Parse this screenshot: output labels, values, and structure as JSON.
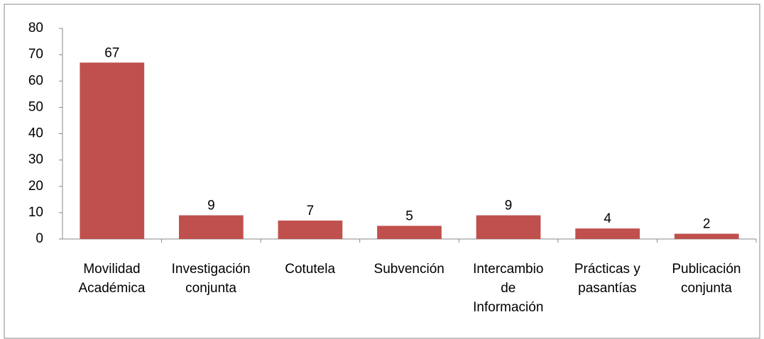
{
  "chart_data": {
    "type": "bar",
    "categories": [
      "Movilidad\nAcadémica",
      "Investigación\nconjunta",
      "Cotutela",
      "Subvención",
      "Intercambio\nde\nInformación",
      "Prácticas y\npasantías",
      "Publicación\nconjunta"
    ],
    "values": [
      67,
      9,
      7,
      5,
      9,
      4,
      2
    ],
    "color": "#c0504d",
    "ylim": [
      0,
      80
    ],
    "yticks": [
      0,
      10,
      20,
      30,
      40,
      50,
      60,
      70,
      80
    ],
    "grid": false
  }
}
